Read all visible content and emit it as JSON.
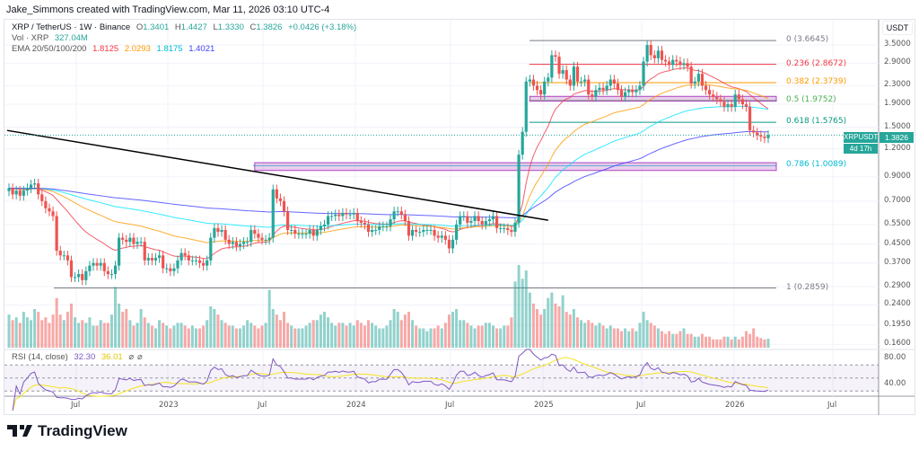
{
  "credit": "Jake_Simmons created with TradingView.com, Mar 11, 2026 03:10 UTC-4",
  "legend": {
    "symbol": "XRP / TetherUS · 1W · Binance",
    "o_label": "O",
    "o": "1.3401",
    "h_label": "H",
    "h": "1.4427",
    "l_label": "L",
    "l": "1.3330",
    "c_label": "C",
    "c": "1.3826",
    "change": "+0.0426 (+3.18%)",
    "vol_label": "Vol · XRP",
    "vol": "327.04M",
    "ema_label": "EMA 20/50/100/200",
    "ema20": "1.8125",
    "ema50": "2.0293",
    "ema100": "1.8175",
    "ema200": "1.4021",
    "rsi_label": "RSI (14, close)",
    "rsi": "32.30",
    "rsi_ma": "36.01"
  },
  "colors": {
    "up": "#26a69a",
    "down": "#ef5350",
    "ema20": "#f23645",
    "ema50": "#ff9800",
    "ema100": "#00e5ff",
    "ema200": "#3f3fff",
    "rsi": "#7e57c2",
    "rsi_ma": "#f5e320",
    "trendline": "#000000",
    "zone": "#ce93d8"
  },
  "price_axis": {
    "unit": "USDT",
    "ticks": [
      "3.5000",
      "2.9000",
      "2.3000",
      "1.9000",
      "1.5000",
      "1.2000",
      "0.9000",
      "0.7000",
      "0.5500",
      "0.4500",
      "0.3700",
      "0.2900",
      "0.2400",
      "0.1950",
      "0.1600"
    ],
    "scale": "log"
  },
  "rsi_axis": {
    "ticks": [
      "80.00",
      "40.00"
    ]
  },
  "time_axis": {
    "ticks": [
      "Jul",
      "2023",
      "Jul",
      "2024",
      "Jul",
      "2025",
      "Jul",
      "2026",
      "Jul"
    ]
  },
  "last_price": {
    "symbol": "XRPUSDT",
    "price": "1.3826",
    "countdown": "4d 17h"
  },
  "fib_levels": [
    {
      "label": "0 (3.6645)",
      "value": 3.6645,
      "color": "#787b86"
    },
    {
      "label": "0.236 (2.8672)",
      "value": 2.8672,
      "color": "#f23645"
    },
    {
      "label": "0.382 (2.3739)",
      "value": 2.3739,
      "color": "#ff9800"
    },
    {
      "label": "0.5 (1.9752)",
      "value": 1.9752,
      "color": "#4caf50"
    },
    {
      "label": "0.618 (1.5765)",
      "value": 1.5765,
      "color": "#089981"
    },
    {
      "label": "0.786 (1.0089)",
      "value": 1.0089,
      "color": "#00bcd4"
    },
    {
      "label": "1 (0.2859)",
      "value": 0.2859,
      "color": "#787b86"
    }
  ],
  "chart_data": {
    "type": "candlestick",
    "title": "XRP / TetherUS · 1W · Binance",
    "ylim": [
      0.155,
      3.9
    ],
    "closes": [
      0.8,
      0.75,
      0.78,
      0.74,
      0.78,
      0.8,
      0.83,
      0.84,
      0.75,
      0.7,
      0.65,
      0.63,
      0.6,
      0.42,
      0.4,
      0.4,
      0.38,
      0.32,
      0.32,
      0.33,
      0.31,
      0.34,
      0.36,
      0.37,
      0.36,
      0.37,
      0.34,
      0.33,
      0.33,
      0.36,
      0.48,
      0.47,
      0.46,
      0.48,
      0.45,
      0.46,
      0.46,
      0.38,
      0.39,
      0.38,
      0.39,
      0.4,
      0.35,
      0.35,
      0.34,
      0.35,
      0.38,
      0.41,
      0.4,
      0.38,
      0.38,
      0.38,
      0.37,
      0.36,
      0.38,
      0.48,
      0.53,
      0.51,
      0.52,
      0.47,
      0.45,
      0.46,
      0.44,
      0.45,
      0.46,
      0.46,
      0.52,
      0.5,
      0.48,
      0.47,
      0.47,
      0.48,
      0.79,
      0.72,
      0.7,
      0.63,
      0.52,
      0.52,
      0.5,
      0.5,
      0.5,
      0.5,
      0.52,
      0.49,
      0.52,
      0.54,
      0.55,
      0.6,
      0.6,
      0.61,
      0.6,
      0.62,
      0.61,
      0.61,
      0.62,
      0.57,
      0.56,
      0.55,
      0.51,
      0.52,
      0.52,
      0.54,
      0.54,
      0.54,
      0.58,
      0.63,
      0.63,
      0.61,
      0.57,
      0.49,
      0.52,
      0.51,
      0.51,
      0.52,
      0.52,
      0.52,
      0.49,
      0.48,
      0.49,
      0.47,
      0.43,
      0.47,
      0.55,
      0.6,
      0.6,
      0.56,
      0.57,
      0.6,
      0.57,
      0.55,
      0.57,
      0.58,
      0.6,
      0.53,
      0.53,
      0.53,
      0.52,
      0.51,
      0.56,
      1.13,
      1.43,
      2.4,
      2.45,
      2.3,
      2.2,
      2.1,
      2.4,
      2.5,
      3.15,
      3.1,
      2.6,
      2.7,
      2.45,
      2.3,
      2.8,
      2.4,
      2.4,
      2.45,
      2.1,
      2.05,
      2.2,
      2.25,
      2.2,
      2.3,
      2.45,
      2.35,
      2.2,
      2.05,
      2.15,
      2.2,
      2.15,
      2.2,
      2.3,
      2.95,
      3.5,
      3.15,
      3.05,
      3.3,
      3.0,
      2.95,
      2.85,
      3.0,
      2.95,
      2.85,
      2.9,
      2.8,
      2.35,
      2.4,
      2.6,
      2.3,
      2.2,
      2.1,
      2.05,
      2.0,
      1.95,
      1.85,
      1.9,
      1.85,
      2.1,
      2.0,
      1.9,
      1.85,
      1.45,
      1.42,
      1.38,
      1.36,
      1.34,
      1.3826
    ],
    "volume_billions": [
      1.2,
      1.0,
      1.1,
      0.9,
      1.3,
      1.1,
      1.0,
      1.4,
      1.3,
      1.0,
      1.1,
      0.9,
      1.2,
      1.8,
      1.2,
      1.0,
      1.3,
      1.6,
      1.1,
      0.9,
      1.0,
      0.9,
      1.1,
      0.8,
      0.8,
      1.0,
      0.9,
      0.9,
      1.2,
      2.2,
      1.6,
      1.3,
      1.4,
      1.0,
      0.8,
      0.9,
      1.4,
      1.1,
      0.9,
      0.8,
      0.7,
      1.0,
      0.9,
      0.8,
      0.7,
      0.8,
      0.9,
      0.9,
      0.8,
      0.7,
      0.8,
      0.7,
      0.7,
      0.8,
      1.0,
      1.5,
      1.4,
      1.2,
      1.0,
      0.9,
      0.8,
      0.8,
      0.7,
      0.7,
      0.8,
      1.0,
      0.9,
      0.8,
      0.7,
      0.8,
      0.9,
      2.1,
      1.4,
      1.2,
      1.0,
      1.3,
      0.9,
      0.8,
      0.7,
      0.7,
      0.7,
      0.8,
      0.9,
      1.0,
      1.0,
      1.2,
      1.3,
      1.1,
      0.9,
      0.8,
      0.9,
      0.9,
      0.8,
      0.9,
      0.8,
      1.0,
      0.9,
      0.8,
      1.0,
      0.9,
      0.8,
      0.7,
      0.7,
      0.8,
      1.0,
      1.4,
      1.3,
      1.0,
      1.2,
      1.3,
      1.0,
      0.8,
      0.7,
      0.7,
      0.6,
      0.7,
      0.7,
      0.8,
      0.7,
      0.9,
      1.2,
      1.3,
      1.4,
      1.0,
      1.0,
      0.9,
      0.8,
      0.7,
      0.8,
      0.8,
      0.9,
      0.9,
      0.8,
      0.7,
      0.7,
      0.8,
      0.8,
      1.1,
      2.4,
      3.0,
      2.5,
      2.8,
      2.0,
      1.6,
      1.4,
      1.2,
      1.4,
      1.8,
      2.0,
      1.6,
      1.5,
      1.9,
      1.3,
      1.2,
      1.4,
      1.1,
      1.0,
      0.9,
      1.0,
      0.9,
      0.8,
      0.9,
      0.8,
      0.7,
      0.8,
      0.7,
      0.7,
      0.6,
      0.7,
      0.6,
      0.7,
      0.6,
      0.9,
      1.3,
      1.0,
      0.9,
      0.8,
      0.7,
      0.6,
      0.5,
      0.6,
      0.5,
      0.5,
      0.6,
      0.7,
      0.5,
      0.5,
      0.4,
      0.4,
      0.5,
      0.4,
      0.4,
      0.3,
      0.3,
      0.3,
      0.4,
      0.4,
      0.3,
      0.4,
      0.3,
      0.4,
      0.6,
      0.5,
      0.7,
      0.4,
      0.35,
      0.3,
      0.327
    ],
    "trendline": {
      "from_week": 0,
      "from_price": 1.45,
      "to_week": 147,
      "to_price": 0.575
    },
    "zones": [
      {
        "from_week": 67,
        "low": 0.96,
        "high": 1.04
      },
      {
        "from_week": 142,
        "low": 1.96,
        "high": 2.06
      }
    ],
    "ema_periods": [
      20,
      50,
      100,
      200
    ],
    "rsi_period": 14,
    "rsi_bands": [
      70,
      50,
      30
    ]
  }
}
